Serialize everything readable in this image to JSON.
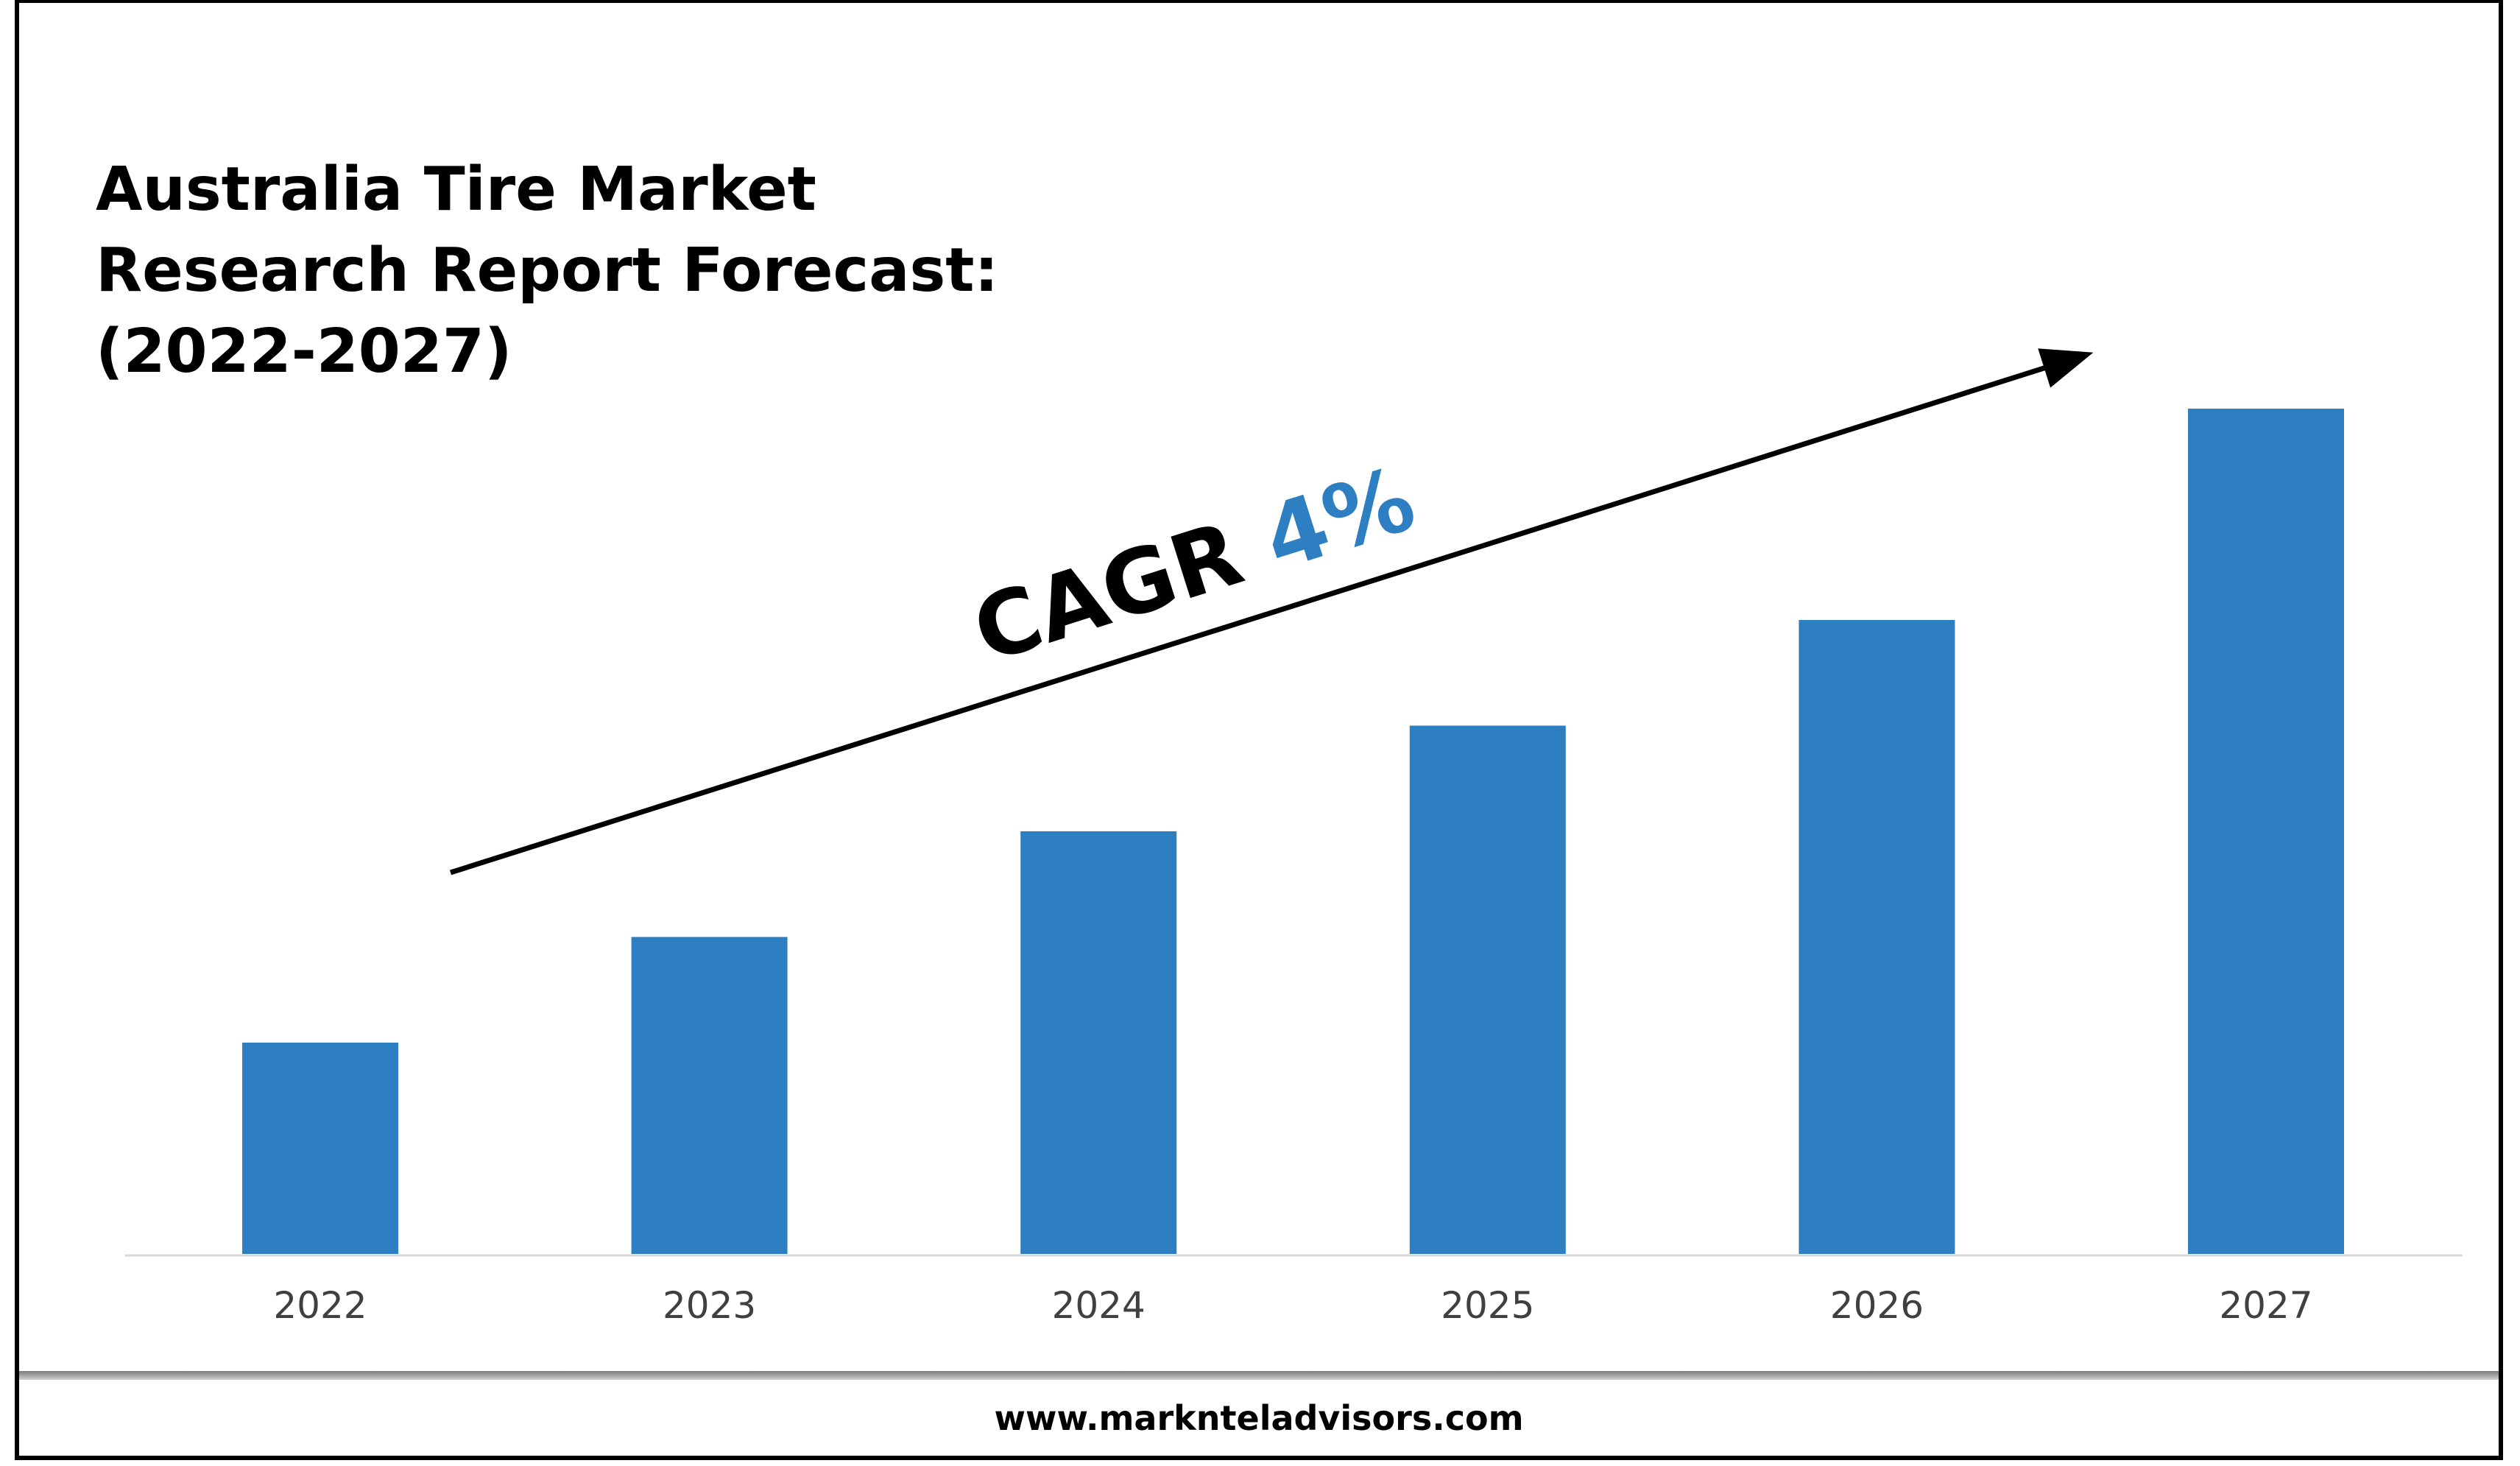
{
  "chart_data": {
    "type": "bar",
    "title_lines": [
      "Australia Tire Market",
      "Research Report Forecast:",
      "(2022-2027)"
    ],
    "categories": [
      "2022",
      "2023",
      "2024",
      "2025",
      "2026",
      "2027"
    ],
    "values": [
      25,
      37.5,
      50,
      62.5,
      75,
      100
    ],
    "ylim": [
      0,
      100
    ],
    "xlabel": "",
    "ylabel": "",
    "grid": false,
    "legend": "none",
    "bar_color": "#2E7FC1",
    "annotation": {
      "prefix": "CAGR ",
      "value": "4%",
      "value_color": "#2E7FC1"
    }
  },
  "footer": {
    "url": "www.marknteladvisors.com"
  }
}
